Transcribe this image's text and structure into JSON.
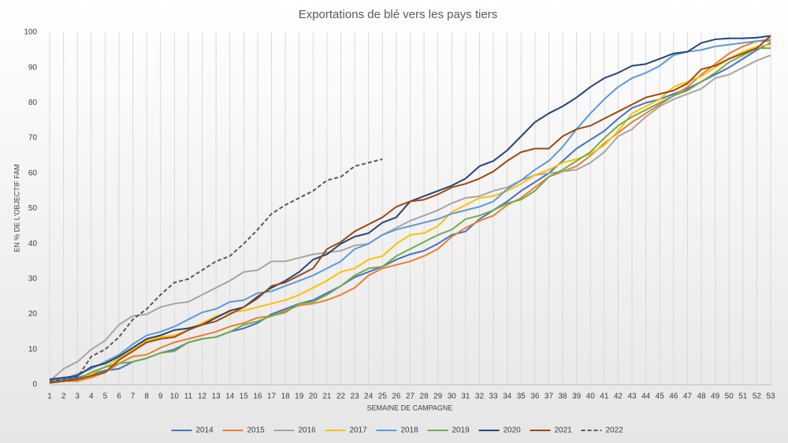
{
  "chart_data": {
    "type": "line",
    "title": "Exportations de blé vers les pays tiers",
    "x_label": "SEMAINE DE CAMPAGNE",
    "y_label": "EN % DE L'OBJECTIF FAM",
    "x": [
      1,
      2,
      3,
      4,
      5,
      6,
      7,
      8,
      9,
      10,
      11,
      12,
      13,
      14,
      15,
      16,
      17,
      18,
      19,
      20,
      21,
      22,
      23,
      24,
      25,
      26,
      27,
      28,
      29,
      30,
      31,
      32,
      33,
      34,
      35,
      36,
      37,
      38,
      39,
      40,
      41,
      42,
      43,
      44,
      45,
      46,
      47,
      48,
      49,
      50,
      51,
      52,
      53
    ],
    "xlim": [
      1,
      53
    ],
    "xticks": [
      1,
      2,
      3,
      4,
      5,
      6,
      7,
      8,
      9,
      10,
      11,
      12,
      13,
      14,
      15,
      16,
      17,
      18,
      19,
      20,
      21,
      22,
      23,
      24,
      25,
      26,
      27,
      28,
      29,
      30,
      31,
      32,
      33,
      34,
      35,
      36,
      37,
      38,
      39,
      40,
      41,
      42,
      43,
      44,
      45,
      46,
      47,
      48,
      49,
      50,
      51,
      52,
      53
    ],
    "ylim": [
      0,
      100
    ],
    "yticks": [
      0,
      10,
      20,
      30,
      40,
      50,
      60,
      70,
      80,
      90,
      100
    ],
    "grid": "x",
    "legend": "bottom",
    "series": [
      {
        "name": "2014",
        "color": "#4472c4",
        "style": "solid",
        "values": [
          1,
          1.5,
          2,
          3,
          4,
          4.5,
          6.5,
          7.5,
          9,
          10,
          12,
          13,
          13.5,
          15,
          16,
          17.5,
          20,
          21.5,
          23,
          24,
          26,
          28,
          30.5,
          32,
          33.5,
          35.5,
          37,
          38,
          40,
          42.5,
          43.5,
          47,
          49.5,
          52,
          55,
          57.5,
          60,
          63.5,
          67,
          69.5,
          72,
          75.5,
          78.5,
          80,
          81,
          82.5,
          84,
          86,
          88,
          90,
          92.5,
          95,
          97
        ]
      },
      {
        "name": "2015",
        "color": "#ed7d31",
        "style": "solid",
        "values": [
          0.5,
          1,
          1,
          2,
          3.5,
          6,
          8,
          8.5,
          10.5,
          12,
          13,
          14,
          15,
          16.5,
          17.5,
          19,
          19.5,
          21,
          22.5,
          23,
          24,
          25.5,
          27.5,
          31,
          33,
          34,
          35,
          36.5,
          38.5,
          42,
          44.5,
          46.5,
          48,
          51,
          53,
          56,
          59,
          60.5,
          62,
          65,
          68.5,
          71.5,
          74.5,
          77,
          79.5,
          82,
          84.5,
          88,
          91,
          94,
          96,
          97.5,
          98
        ]
      },
      {
        "name": "2016",
        "color": "#a5a5a5",
        "style": "solid",
        "values": [
          1,
          4.5,
          6.5,
          10,
          12.5,
          17,
          19.5,
          20,
          22,
          23,
          23.5,
          25.5,
          27.5,
          29.5,
          32,
          32.5,
          35,
          35,
          36,
          37,
          37.5,
          38,
          39.5,
          40,
          42.5,
          44.5,
          46.5,
          48,
          49.5,
          51.5,
          53,
          53.5,
          55,
          56,
          58,
          59.5,
          60,
          60.5,
          61,
          63,
          66,
          70.5,
          72.5,
          76,
          79,
          81,
          82.5,
          84,
          87,
          88,
          90,
          92,
          93.5
        ]
      },
      {
        "name": "2017",
        "color": "#ffc000",
        "style": "solid",
        "values": [
          0.5,
          1,
          1.5,
          3,
          5,
          7.5,
          10,
          12.5,
          13.5,
          14,
          15.5,
          17.5,
          19.5,
          20.5,
          21,
          22,
          23,
          24,
          25.5,
          27.5,
          29.5,
          32,
          33,
          35.5,
          36.5,
          40,
          42.5,
          43,
          45,
          49,
          51,
          53,
          53.5,
          55,
          57,
          59.5,
          61,
          63,
          64,
          65.5,
          68,
          72,
          77,
          79,
          81,
          84.5,
          86,
          87.5,
          90,
          92.5,
          94.5,
          96,
          96.5
        ]
      },
      {
        "name": "2018",
        "color": "#5b9bd5",
        "style": "solid",
        "values": [
          1,
          1.5,
          3,
          4.5,
          6.5,
          8.5,
          11.5,
          14,
          15,
          16.5,
          18.5,
          20.5,
          21.5,
          23.5,
          24,
          26,
          26.5,
          28,
          29.5,
          31,
          33,
          35,
          38.5,
          40,
          42.5,
          44,
          45,
          46,
          47,
          48.5,
          49.5,
          50.5,
          52,
          55.5,
          58,
          61,
          63.5,
          67.5,
          72.5,
          77,
          81,
          84.5,
          87,
          88.5,
          90.5,
          93.5,
          94.5,
          95,
          96,
          96.5,
          97,
          97.5,
          97.5
        ]
      },
      {
        "name": "2019",
        "color": "#70ad47",
        "style": "solid",
        "values": [
          0.5,
          1,
          1.5,
          3.5,
          5,
          6,
          6.5,
          7.5,
          9,
          9.5,
          12,
          13,
          13.5,
          15,
          17,
          18,
          19.5,
          20.5,
          23,
          23.5,
          25.5,
          28,
          31,
          33,
          33.5,
          36.5,
          38.5,
          40.5,
          42.5,
          44,
          47,
          48,
          49.5,
          51.5,
          52.5,
          55,
          59,
          61,
          63.5,
          66,
          70,
          73.5,
          76,
          78,
          80,
          82,
          83.5,
          86,
          88.5,
          91.5,
          93.5,
          95.5,
          95.5
        ]
      },
      {
        "name": "2020",
        "color": "#264478",
        "style": "solid",
        "values": [
          1.5,
          2,
          2.5,
          5,
          6,
          8,
          10.5,
          13,
          14,
          15.5,
          16,
          17,
          19,
          21,
          22,
          25,
          27.5,
          29.5,
          32,
          35.5,
          37,
          40,
          42,
          43,
          46,
          47.5,
          52,
          53.5,
          55,
          56.5,
          58.5,
          62,
          63.5,
          66.5,
          70.5,
          74.5,
          77,
          79,
          81.5,
          84.5,
          87,
          88.5,
          90.5,
          91,
          92.5,
          94,
          94.5,
          97,
          98,
          98.3,
          98.3,
          98.5,
          99
        ]
      },
      {
        "name": "2021",
        "color": "#9e480e",
        "style": "solid",
        "values": [
          0.5,
          1,
          1.5,
          2.5,
          3.5,
          7,
          9.5,
          12,
          13,
          13.5,
          15.5,
          17,
          18,
          20,
          22,
          24.5,
          28,
          29,
          31,
          33,
          38.5,
          40.5,
          43.5,
          45.5,
          47.5,
          50.5,
          52,
          52.5,
          54,
          56,
          57,
          58.5,
          60.5,
          63.5,
          66,
          67,
          67,
          70.5,
          72.5,
          73.5,
          75.5,
          77.5,
          79.5,
          81.5,
          82.5,
          83.5,
          85.5,
          89.5,
          90.5,
          92.5,
          94,
          95.5,
          99
        ]
      },
      {
        "name": "2022",
        "color": "#595959",
        "style": "dashed",
        "values": [
          1,
          1.5,
          2,
          8,
          10,
          13.5,
          18.5,
          21.5,
          25.5,
          29,
          30,
          32.5,
          35,
          36.5,
          40,
          44,
          48.5,
          51,
          53,
          55,
          58,
          59,
          62,
          63,
          64,
          null,
          null,
          null,
          null,
          null,
          null,
          null,
          null,
          null,
          null,
          null,
          null,
          null,
          null,
          null,
          null,
          null,
          null,
          null,
          null,
          null,
          null,
          null,
          null,
          null,
          null,
          null,
          null
        ]
      }
    ]
  }
}
